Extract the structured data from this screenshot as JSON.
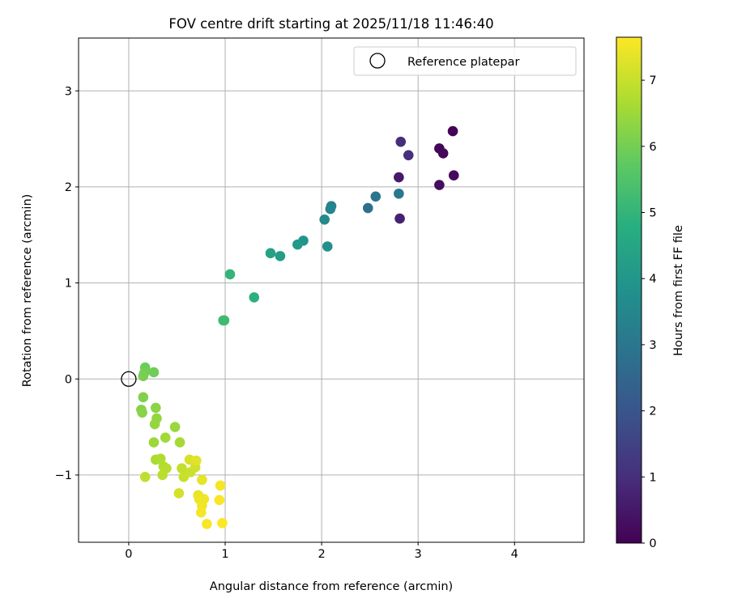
{
  "chart_data": {
    "type": "scatter",
    "title": "FOV centre drift starting at 2025/11/18 11:46:40",
    "xlabel": "Angular distance from reference (arcmin)",
    "ylabel": "Rotation from reference (arcmin)",
    "xlim": [
      -0.52,
      4.72
    ],
    "ylim": [
      -1.7,
      3.55
    ],
    "xticks": [
      0,
      1,
      2,
      3,
      4
    ],
    "yticks": [
      -1,
      0,
      1,
      2,
      3
    ],
    "xtick_labels": [
      "0",
      "1",
      "2",
      "3",
      "4"
    ],
    "ytick_labels": [
      "−1",
      "0",
      "1",
      "2",
      "3"
    ],
    "grid": true,
    "legend": {
      "position": "top-right",
      "label": "Reference platepar"
    },
    "reference_point": {
      "x": 0,
      "y": 0
    },
    "colorbar": {
      "label": "Hours from first FF file",
      "min": 0,
      "max": 7.65,
      "ticks": [
        0,
        1,
        2,
        3,
        4,
        5,
        6,
        7
      ],
      "tick_labels": [
        "0",
        "1",
        "2",
        "3",
        "4",
        "5",
        "6",
        "7"
      ],
      "colormap": "viridis"
    },
    "points": [
      {
        "x": 3.36,
        "y": 2.58,
        "t": 0.05
      },
      {
        "x": 3.22,
        "y": 2.4,
        "t": 0.1
      },
      {
        "x": 3.26,
        "y": 2.35,
        "t": 0.15
      },
      {
        "x": 3.37,
        "y": 2.12,
        "t": 0.2
      },
      {
        "x": 3.22,
        "y": 2.02,
        "t": 0.25
      },
      {
        "x": 2.8,
        "y": 2.1,
        "t": 0.55
      },
      {
        "x": 2.81,
        "y": 1.67,
        "t": 0.7
      },
      {
        "x": 2.82,
        "y": 2.47,
        "t": 0.95
      },
      {
        "x": 2.9,
        "y": 2.33,
        "t": 1.05
      },
      {
        "x": 2.48,
        "y": 1.78,
        "t": 2.8
      },
      {
        "x": 2.56,
        "y": 1.9,
        "t": 2.95
      },
      {
        "x": 2.8,
        "y": 1.93,
        "t": 3.05
      },
      {
        "x": 2.1,
        "y": 1.8,
        "t": 3.35
      },
      {
        "x": 2.09,
        "y": 1.77,
        "t": 3.45
      },
      {
        "x": 2.03,
        "y": 1.66,
        "t": 3.6
      },
      {
        "x": 2.06,
        "y": 1.38,
        "t": 3.75
      },
      {
        "x": 1.81,
        "y": 1.44,
        "t": 3.95
      },
      {
        "x": 1.75,
        "y": 1.4,
        "t": 4.1
      },
      {
        "x": 1.57,
        "y": 1.28,
        "t": 4.2
      },
      {
        "x": 1.47,
        "y": 1.31,
        "t": 4.35
      },
      {
        "x": 1.3,
        "y": 0.85,
        "t": 4.85
      },
      {
        "x": 1.05,
        "y": 1.09,
        "t": 5.0
      },
      {
        "x": 0.99,
        "y": 0.61,
        "t": 5.1
      },
      {
        "x": 0.98,
        "y": 0.61,
        "t": 5.2
      },
      {
        "x": 0.17,
        "y": 0.12,
        "t": 5.9
      },
      {
        "x": 0.16,
        "y": 0.06,
        "t": 6.0
      },
      {
        "x": 0.15,
        "y": 0.03,
        "t": 6.05
      },
      {
        "x": 0.26,
        "y": 0.07,
        "t": 5.95
      },
      {
        "x": 0.15,
        "y": -0.19,
        "t": 6.15
      },
      {
        "x": 0.13,
        "y": -0.32,
        "t": 6.2
      },
      {
        "x": 0.14,
        "y": -0.35,
        "t": 6.25
      },
      {
        "x": 0.28,
        "y": -0.3,
        "t": 6.3
      },
      {
        "x": 0.29,
        "y": -0.41,
        "t": 6.35
      },
      {
        "x": 0.27,
        "y": -0.47,
        "t": 6.4
      },
      {
        "x": 0.48,
        "y": -0.5,
        "t": 6.45
      },
      {
        "x": 0.26,
        "y": -0.66,
        "t": 6.5
      },
      {
        "x": 0.38,
        "y": -0.61,
        "t": 6.55
      },
      {
        "x": 0.53,
        "y": -0.66,
        "t": 6.6
      },
      {
        "x": 0.28,
        "y": -0.84,
        "t": 6.65
      },
      {
        "x": 0.33,
        "y": -0.83,
        "t": 6.7
      },
      {
        "x": 0.36,
        "y": -0.91,
        "t": 6.75
      },
      {
        "x": 0.39,
        "y": -0.93,
        "t": 6.8
      },
      {
        "x": 0.35,
        "y": -1.0,
        "t": 6.85
      },
      {
        "x": 0.17,
        "y": -1.02,
        "t": 6.9
      },
      {
        "x": 0.55,
        "y": -0.93,
        "t": 6.95
      },
      {
        "x": 0.57,
        "y": -1.02,
        "t": 7.0
      },
      {
        "x": 0.64,
        "y": -0.97,
        "t": 7.05
      },
      {
        "x": 0.69,
        "y": -0.92,
        "t": 7.1
      },
      {
        "x": 0.52,
        "y": -1.19,
        "t": 7.15
      },
      {
        "x": 0.63,
        "y": -0.84,
        "t": 7.2
      },
      {
        "x": 0.7,
        "y": -0.85,
        "t": 7.3
      },
      {
        "x": 0.76,
        "y": -1.05,
        "t": 7.35
      },
      {
        "x": 0.72,
        "y": -1.21,
        "t": 7.4
      },
      {
        "x": 0.73,
        "y": -1.25,
        "t": 7.45
      },
      {
        "x": 0.78,
        "y": -1.25,
        "t": 7.5
      },
      {
        "x": 0.76,
        "y": -1.32,
        "t": 7.5
      },
      {
        "x": 0.75,
        "y": -1.39,
        "t": 7.55
      },
      {
        "x": 0.81,
        "y": -1.51,
        "t": 7.6
      },
      {
        "x": 0.95,
        "y": -1.11,
        "t": 7.55
      },
      {
        "x": 0.94,
        "y": -1.26,
        "t": 7.6
      },
      {
        "x": 0.97,
        "y": -1.5,
        "t": 7.65
      }
    ]
  }
}
